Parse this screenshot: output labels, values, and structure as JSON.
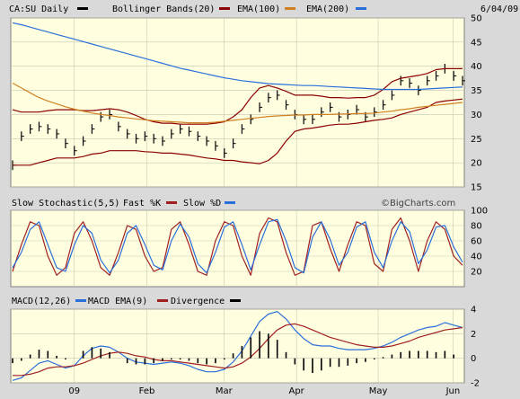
{
  "colors": {
    "background": "#d9d9d9",
    "panel": "#ffffe0",
    "grid": "#c8c8b4",
    "price": "#000000",
    "bollinger": "#8b0000",
    "ema100": "#d08020",
    "ema200": "#2a6fdb",
    "fastK": "#a02020",
    "slowD": "#2a6fdb",
    "macd": "#2a6fdb",
    "macdEma": "#a02020",
    "divergence": "#000000"
  },
  "header": {
    "symbol": "CA:SU Daily",
    "bollinger": "Bollinger Bands(20)",
    "ema100": "EMA(100)",
    "ema200": "EMA(200)",
    "date": "6/04/09"
  },
  "stoch_header": {
    "title": "Slow Stochastic(5,5)",
    "fastK": "Fast %K",
    "slowD": "Slow %D",
    "brand": "©BigCharts.com"
  },
  "macd_header": {
    "title": "MACD(12,26)",
    "macdEma": "MACD EMA(9)",
    "divergence": "Divergence"
  },
  "x_axis": {
    "labels": [
      "09",
      "Feb",
      "Mar",
      "Apr",
      "May",
      "Jun"
    ]
  },
  "chart_data": [
    {
      "type": "line",
      "title": "CA:SU Daily",
      "ylim": [
        15,
        50
      ],
      "yticks": [
        15,
        20,
        25,
        30,
        35,
        40,
        45,
        50
      ],
      "series": [
        {
          "name": "Price",
          "values": [
            19.5,
            25.5,
            27,
            27.5,
            27,
            26,
            24,
            22.5,
            24.5,
            27,
            29.5,
            30,
            27.5,
            26,
            25,
            25.5,
            25,
            24.5,
            26,
            27,
            26.5,
            25.5,
            24.5,
            23.5,
            22,
            24,
            27,
            29,
            31.5,
            33.5,
            34,
            32,
            30,
            29,
            29,
            30.5,
            31.5,
            29.5,
            30,
            31,
            29.5,
            30.5,
            32,
            34,
            37,
            36.5,
            35,
            37,
            38,
            39.5,
            38,
            37
          ]
        },
        {
          "name": "Bollinger Upper",
          "values": [
            31,
            30.5,
            30.5,
            30.5,
            30.8,
            31,
            31,
            31,
            30.8,
            30.8,
            31,
            31.2,
            31,
            30.5,
            29.8,
            29,
            28.5,
            28.2,
            28.2,
            28,
            28,
            28,
            28,
            28.2,
            28.5,
            29.5,
            31,
            33.5,
            35.5,
            36,
            35.5,
            34.8,
            34,
            34,
            34,
            33.8,
            33.5,
            33.5,
            33.4,
            33.5,
            33.5,
            34,
            35.2,
            36.8,
            37.5,
            37.8,
            38.1,
            38.5,
            39.3,
            39.5,
            39.5,
            39.5
          ]
        },
        {
          "name": "Bollinger Lower",
          "values": [
            19.5,
            19.5,
            19.5,
            20,
            20.5,
            21,
            21,
            21,
            21.3,
            21.8,
            22,
            22.5,
            22.5,
            22.5,
            22.5,
            22.3,
            22.2,
            22,
            22,
            21.8,
            21.6,
            21.3,
            21,
            20.8,
            20.5,
            20.5,
            20.2,
            20,
            19.8,
            20.5,
            22,
            24.5,
            26.5,
            27,
            27.2,
            27.5,
            27.8,
            28,
            28,
            28.2,
            28.5,
            28.8,
            29,
            29.3,
            30,
            30.5,
            31,
            31.5,
            32.5,
            32.8,
            33,
            33.2
          ]
        },
        {
          "name": "EMA(100)",
          "values": [
            36.5,
            35.5,
            34.5,
            33.5,
            32.8,
            32.2,
            31.6,
            31.1,
            30.7,
            30.3,
            30,
            29.8,
            29.5,
            29.3,
            29.1,
            28.9,
            28.7,
            28.6,
            28.5,
            28.4,
            28.3,
            28.3,
            28.3,
            28.4,
            28.6,
            28.8,
            29,
            29.2,
            29.4,
            29.6,
            29.7,
            29.8,
            29.9,
            29.9,
            30,
            30,
            30,
            30.1,
            30.1,
            30.2,
            30.2,
            30.3,
            30.5,
            30.7,
            31,
            31.2,
            31.5,
            31.7,
            31.9,
            32.1,
            32.3,
            32.5
          ]
        },
        {
          "name": "EMA(200)",
          "values": [
            49,
            48.6,
            48.1,
            47.6,
            47.1,
            46.6,
            46.1,
            45.6,
            45.1,
            44.6,
            44.1,
            43.6,
            43.1,
            42.6,
            42.1,
            41.6,
            41.1,
            40.6,
            40.1,
            39.6,
            39.2,
            38.8,
            38.4,
            38,
            37.6,
            37.3,
            37,
            36.8,
            36.6,
            36.4,
            36.3,
            36.2,
            36.1,
            36,
            36,
            35.9,
            35.8,
            35.7,
            35.6,
            35.5,
            35.4,
            35.3,
            35.2,
            35.2,
            35.2,
            35.2,
            35.2,
            35.3,
            35.4,
            35.5,
            35.6,
            35.7
          ]
        }
      ]
    },
    {
      "type": "line",
      "title": "Slow Stochastic(5,5)",
      "ylim": [
        0,
        100
      ],
      "yticks": [
        20,
        40,
        60,
        80,
        100
      ],
      "series": [
        {
          "name": "Fast %K",
          "values": [
            20,
            55,
            85,
            80,
            40,
            15,
            25,
            70,
            85,
            60,
            25,
            15,
            45,
            80,
            75,
            40,
            20,
            25,
            75,
            85,
            55,
            20,
            15,
            60,
            85,
            80,
            40,
            15,
            70,
            90,
            85,
            45,
            15,
            20,
            80,
            85,
            50,
            20,
            55,
            85,
            80,
            30,
            20,
            75,
            90,
            60,
            20,
            60,
            85,
            75,
            40,
            28
          ]
        },
        {
          "name": "Slow %D",
          "values": [
            25,
            45,
            75,
            85,
            55,
            25,
            20,
            55,
            80,
            70,
            35,
            18,
            35,
            70,
            80,
            55,
            28,
            22,
            60,
            82,
            65,
            30,
            18,
            45,
            78,
            85,
            55,
            22,
            55,
            85,
            88,
            60,
            25,
            18,
            65,
            85,
            62,
            28,
            45,
            78,
            85,
            45,
            25,
            60,
            85,
            72,
            30,
            48,
            78,
            80,
            52,
            32
          ]
        }
      ]
    },
    {
      "type": "line",
      "title": "MACD(12,26)",
      "ylim": [
        -2,
        4
      ],
      "yticks": [
        -2,
        0,
        2,
        4
      ],
      "series": [
        {
          "name": "MACD",
          "values": [
            -1.8,
            -1.6,
            -1,
            -0.4,
            -0.2,
            -0.5,
            -0.8,
            -0.6,
            0.2,
            0.8,
            1,
            0.9,
            0.5,
            0,
            -0.3,
            -0.4,
            -0.5,
            -0.4,
            -0.3,
            -0.4,
            -0.6,
            -0.9,
            -1.1,
            -1.1,
            -0.9,
            -0.3,
            0.6,
            1.8,
            3,
            3.6,
            3.8,
            3.2,
            2.3,
            1.6,
            1.1,
            1,
            1,
            0.8,
            0.7,
            0.7,
            0.7,
            0.8,
            1,
            1.3,
            1.7,
            2,
            2.3,
            2.5,
            2.6,
            2.9,
            2.7,
            2.5
          ]
        },
        {
          "name": "MACD EMA(9)",
          "values": [
            -1.4,
            -1.4,
            -1.3,
            -1.1,
            -0.8,
            -0.7,
            -0.7,
            -0.6,
            -0.4,
            -0.1,
            0.2,
            0.4,
            0.5,
            0.4,
            0.2,
            0.1,
            -0.1,
            -0.2,
            -0.2,
            -0.3,
            -0.4,
            -0.5,
            -0.6,
            -0.7,
            -0.8,
            -0.7,
            -0.4,
            0.1,
            0.8,
            1.6,
            2.3,
            2.7,
            2.8,
            2.6,
            2.3,
            2,
            1.7,
            1.5,
            1.3,
            1.1,
            1,
            0.9,
            0.9,
            1,
            1.2,
            1.4,
            1.7,
            1.9,
            2.1,
            2.3,
            2.4,
            2.5
          ]
        },
        {
          "name": "Divergence",
          "values": [
            -0.4,
            -0.2,
            0.3,
            0.7,
            0.6,
            0.2,
            -0.1,
            0,
            0.6,
            0.9,
            0.8,
            0.5,
            0,
            -0.4,
            -0.5,
            -0.5,
            -0.4,
            -0.2,
            -0.1,
            -0.1,
            -0.2,
            -0.4,
            -0.5,
            -0.4,
            -0.1,
            0.4,
            1,
            1.7,
            2.2,
            2,
            1.5,
            0.5,
            -0.5,
            -1,
            -1.2,
            -1,
            -0.7,
            -0.7,
            -0.6,
            -0.4,
            -0.3,
            -0.1,
            0.1,
            0.3,
            0.5,
            0.6,
            0.6,
            0.6,
            0.5,
            0.6,
            0.3,
            0
          ]
        }
      ]
    }
  ]
}
